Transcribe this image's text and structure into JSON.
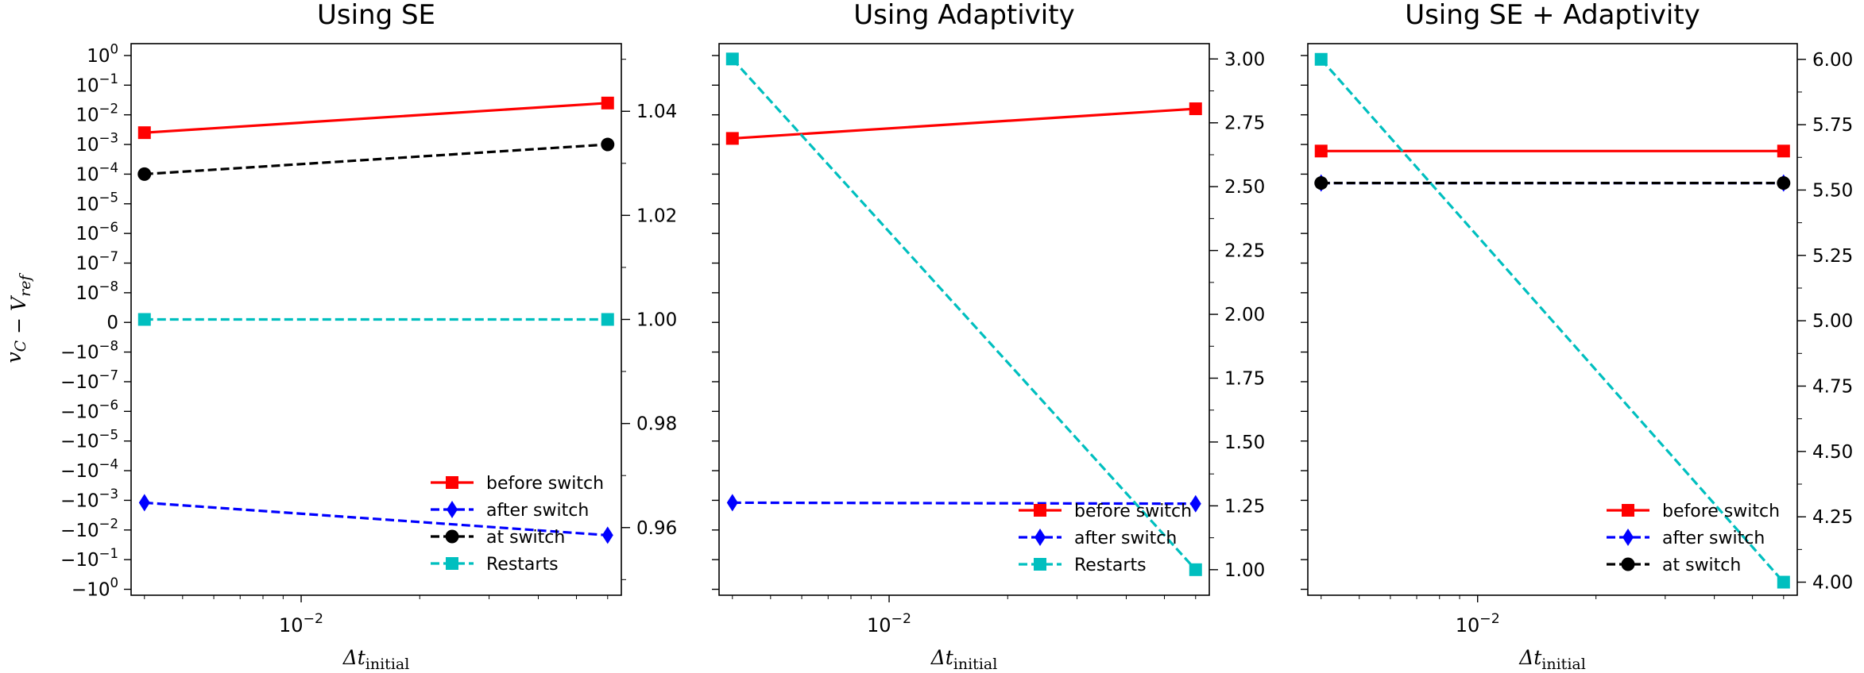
{
  "figure": {
    "shared_ylabel": "v_C − V_ref",
    "xlabel_text": "Δt_initial"
  },
  "chart_data": [
    {
      "type": "line",
      "title": "Using SE",
      "xlabel": "Δt_initial",
      "ylabel": "v_C − V_ref",
      "x": [
        0.004,
        0.06
      ],
      "xlim": [
        0.0037,
        0.065
      ],
      "xscale": "log",
      "x_tick_labels": [
        "10^-2"
      ],
      "left_axis": {
        "scale": "symlog",
        "tick_labels": [
          "10^0",
          "10^-1",
          "10^-2",
          "10^-3",
          "10^-4",
          "10^-5",
          "10^-6",
          "10^-7",
          "10^-8",
          "0",
          "-10^-8",
          "-10^-7",
          "-10^-6",
          "-10^-5",
          "-10^-4",
          "-10^-3",
          "-10^-2",
          "-10^-1",
          "-10^0"
        ]
      },
      "right_axis": {
        "ylim": [
          0.947,
          1.053
        ],
        "tick_labels": [
          "0.96",
          "0.98",
          "1.00",
          "1.02",
          "1.04"
        ]
      },
      "series": [
        {
          "name": "before switch",
          "axis": "left",
          "values": [
            0.0025,
            0.025
          ],
          "color": "#ff0000",
          "linestyle": "solid",
          "marker": "square"
        },
        {
          "name": "after switch",
          "axis": "left",
          "values": [
            -0.0012,
            -0.015
          ],
          "color": "#0000ff",
          "linestyle": "dashed",
          "marker": "diamond"
        },
        {
          "name": "at switch",
          "axis": "left",
          "values": [
            0.0001,
            0.001
          ],
          "color": "#000000",
          "linestyle": "dashed",
          "marker": "circle"
        },
        {
          "name": "Restarts",
          "axis": "right",
          "values": [
            1.0,
            1.0
          ],
          "color": "#00bfbf",
          "linestyle": "dashed",
          "marker": "square"
        }
      ],
      "legend": [
        "before switch",
        "after switch",
        "at switch",
        "Restarts"
      ],
      "legend_position": "lower-right"
    },
    {
      "type": "line",
      "title": "Using Adaptivity",
      "xlabel": "Δt_initial",
      "x": [
        0.004,
        0.06
      ],
      "xlim": [
        0.0037,
        0.065
      ],
      "xscale": "log",
      "x_tick_labels": [
        "10^-2"
      ],
      "left_axis": {
        "scale": "symlog",
        "tick_labels": []
      },
      "right_axis": {
        "ylim": [
          0.9,
          3.06
        ],
        "tick_labels": [
          "1.00",
          "1.25",
          "1.50",
          "1.75",
          "2.00",
          "2.25",
          "2.50",
          "2.75",
          "3.00"
        ]
      },
      "series": [
        {
          "name": "before switch",
          "axis": "left",
          "values": [
            0.0016,
            0.016
          ],
          "color": "#ff0000",
          "linestyle": "solid",
          "marker": "square"
        },
        {
          "name": "after switch",
          "axis": "left",
          "values": [
            -0.0012,
            -0.0013
          ],
          "color": "#0000ff",
          "linestyle": "dashed",
          "marker": "diamond"
        },
        {
          "name": "Restarts",
          "axis": "right",
          "values": [
            3,
            1
          ],
          "color": "#00bfbf",
          "linestyle": "dashed",
          "marker": "square"
        }
      ],
      "legend": [
        "before switch",
        "after switch",
        "Restarts"
      ],
      "legend_position": "lower-right"
    },
    {
      "type": "line",
      "title": "Using SE + Adaptivity",
      "xlabel": "Δt_initial",
      "x": [
        0.004,
        0.06
      ],
      "xlim": [
        0.0037,
        0.065
      ],
      "xscale": "log",
      "x_tick_labels": [
        "10^-2"
      ],
      "left_axis": {
        "scale": "symlog",
        "tick_labels": []
      },
      "right_axis": {
        "ylim": [
          3.95,
          6.06
        ],
        "tick_labels": [
          "4.00",
          "4.25",
          "4.50",
          "4.75",
          "5.00",
          "5.25",
          "5.50",
          "5.75",
          "6.00"
        ]
      },
      "series": [
        {
          "name": "before switch",
          "axis": "left",
          "values": [
            0.0006,
            0.0006
          ],
          "color": "#ff0000",
          "linestyle": "solid",
          "marker": "square"
        },
        {
          "name": "after switch",
          "axis": "left",
          "values": [
            5e-05,
            5e-05
          ],
          "color": "#0000ff",
          "linestyle": "dashed",
          "marker": "diamond"
        },
        {
          "name": "at switch",
          "axis": "left",
          "values": [
            5e-05,
            5e-05
          ],
          "color": "#000000",
          "linestyle": "dashed",
          "marker": "circle"
        },
        {
          "name": "Restarts",
          "axis": "right",
          "values": [
            6,
            4
          ],
          "color": "#00bfbf",
          "linestyle": "dashed",
          "marker": "square"
        }
      ],
      "legend": [
        "before switch",
        "after switch",
        "at switch"
      ],
      "legend_position": "lower-right"
    }
  ]
}
